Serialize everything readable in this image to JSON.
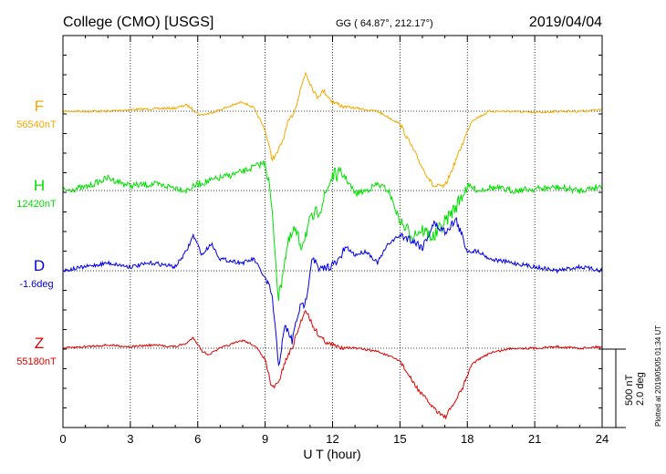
{
  "header": {
    "station": "College (CMO)  [USGS]",
    "coords": "GG ( 64.87°, 212.17°)",
    "date": "2019/04/04"
  },
  "footer": {
    "xlabel": "U T (hour)",
    "scale_nt": "500 nT",
    "scale_deg": "2.0 deg",
    "plotted": "Plotted at 2019/05/05 01:34 UT"
  },
  "colors": {
    "F": "#f5a800",
    "H": "#00e000",
    "D": "#0000e6",
    "Z": "#e00000",
    "frame": "#000000"
  },
  "chart_data": {
    "type": "line",
    "xlim": [
      0,
      24
    ],
    "x_ticks": [
      0,
      3,
      6,
      9,
      12,
      15,
      18,
      21,
      24
    ],
    "grid": true,
    "scale_bar": {
      "nT": 500,
      "deg": 2.0
    },
    "series": [
      {
        "name": "F",
        "baseline_label": "56540nT",
        "x": [
          0,
          1,
          2,
          3,
          4,
          5,
          5.5,
          5.8,
          6.1,
          6.5,
          7,
          8,
          8.5,
          9,
          9.3,
          9.5,
          9.8,
          10,
          10.3,
          10.5,
          10.8,
          11,
          11.3,
          11.6,
          12,
          12.5,
          13,
          14,
          15,
          15.5,
          16,
          16.5,
          17,
          17.3,
          17.8,
          18.2,
          19,
          20,
          21,
          22,
          23,
          24
        ],
        "values": [
          0,
          0,
          0,
          10,
          15,
          20,
          40,
          10,
          -25,
          -15,
          10,
          60,
          20,
          -120,
          -300,
          -280,
          -180,
          -80,
          0,
          100,
          250,
          180,
          90,
          130,
          60,
          30,
          20,
          0,
          -80,
          -220,
          -360,
          -480,
          -480,
          -380,
          -200,
          -60,
          0,
          0,
          -10,
          0,
          0,
          10
        ]
      },
      {
        "name": "H",
        "baseline_label": "12420nT",
        "x": [
          0,
          1,
          2,
          3,
          4,
          5,
          5.5,
          6,
          7,
          8,
          9,
          9.2,
          9.4,
          9.6,
          9.8,
          10,
          10.3,
          10.6,
          11,
          11.5,
          12,
          12.5,
          13,
          13.5,
          14,
          14.5,
          15,
          15.5,
          16,
          16.5,
          17,
          17.5,
          18,
          18.5,
          19,
          20,
          21,
          22,
          23,
          24
        ],
        "values": [
          0,
          20,
          80,
          30,
          40,
          20,
          0,
          40,
          80,
          120,
          180,
          20,
          -300,
          -700,
          -500,
          -350,
          -250,
          -350,
          -200,
          -100,
          100,
          100,
          -20,
          0,
          40,
          0,
          -200,
          -280,
          -250,
          -300,
          -200,
          -100,
          30,
          0,
          20,
          0,
          10,
          20,
          0,
          30
        ]
      },
      {
        "name": "D",
        "baseline_label": "-1.6deg",
        "x": [
          0,
          1,
          2,
          3,
          4,
          5,
          5.5,
          5.8,
          6.2,
          6.6,
          7,
          8,
          8.5,
          9,
          9.3,
          9.6,
          9.9,
          10.2,
          10.5,
          10.8,
          11.1,
          11.4,
          11.8,
          12.2,
          12.6,
          13,
          13.5,
          14,
          14.5,
          15,
          15.5,
          16,
          16.5,
          17,
          17.5,
          18,
          18.5,
          19,
          20,
          21,
          22,
          23,
          24
        ],
        "values": [
          0,
          0.1,
          0.2,
          0.1,
          0.2,
          0.1,
          0.5,
          0.9,
          0.4,
          0.7,
          0.3,
          0.2,
          0.3,
          -0.2,
          -0.6,
          -2.4,
          -1.4,
          -1.8,
          -1.0,
          -0.8,
          0.4,
          0.0,
          0.1,
          0.2,
          0.6,
          0.4,
          0.5,
          0.2,
          0.7,
          0.9,
          0.8,
          0.6,
          1.2,
          1.0,
          1.3,
          0.5,
          0.5,
          0.3,
          0.2,
          0.1,
          0.0,
          0.1,
          0.0
        ]
      },
      {
        "name": "Z",
        "baseline_label": "55180nT",
        "x": [
          0,
          1,
          2,
          3,
          4,
          5,
          5.5,
          5.8,
          6.2,
          6.5,
          7,
          8,
          8.5,
          9,
          9.3,
          9.6,
          9.9,
          10.2,
          10.5,
          10.8,
          11.1,
          11.4,
          11.8,
          12.2,
          13,
          14,
          15,
          15.5,
          16,
          16.5,
          17,
          17.3,
          17.8,
          18.2,
          19,
          20,
          21,
          22,
          23,
          24
        ],
        "values": [
          0,
          10,
          20,
          10,
          20,
          10,
          30,
          70,
          -20,
          -40,
          0,
          50,
          20,
          -70,
          -260,
          -220,
          -80,
          0,
          130,
          250,
          150,
          80,
          30,
          10,
          0,
          -20,
          -80,
          -200,
          -300,
          -380,
          -440,
          -380,
          -250,
          -100,
          -30,
          0,
          0,
          10,
          0,
          10
        ]
      }
    ]
  }
}
